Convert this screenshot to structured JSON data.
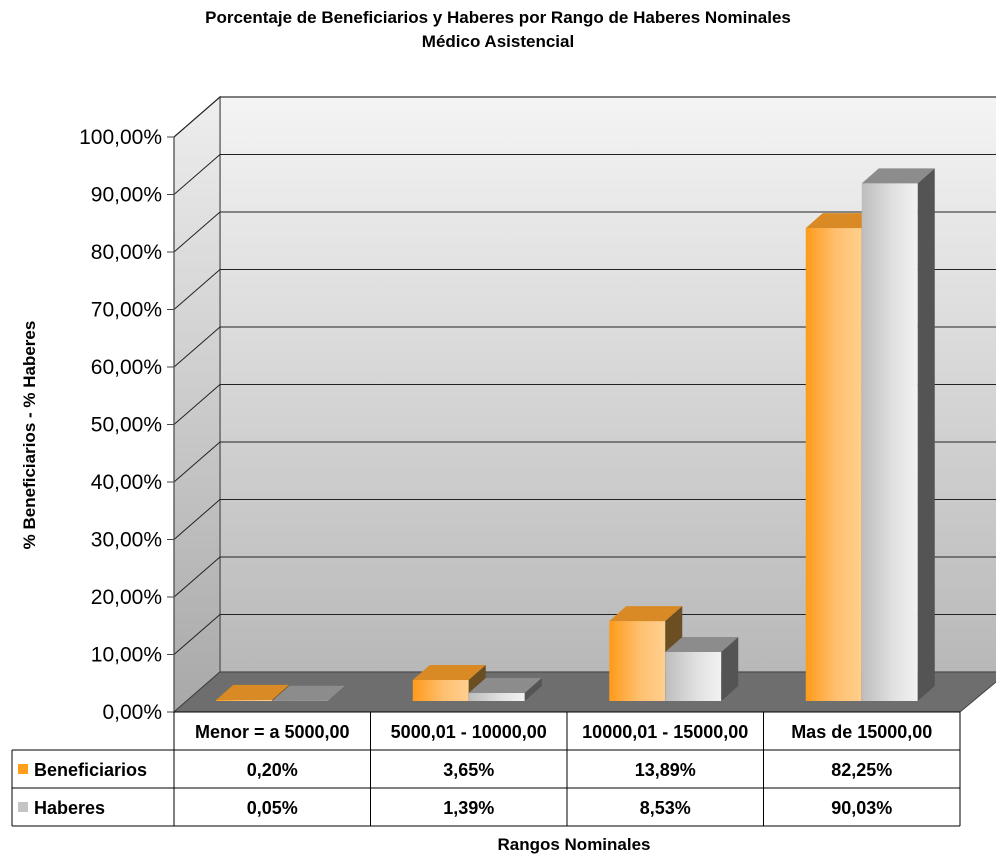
{
  "chart_data": {
    "type": "bar",
    "title": "Porcentaje de Beneficiarios y Haberes por Rango de Haberes Nominales",
    "subtitle": "Médico Asistencial",
    "xlabel": "Rangos Nominales",
    "ylabel": "% Beneficiarios - % Haberes",
    "categories": [
      "Menor = a 5000,00",
      "5000,01 - 10000,00",
      "10000,01 - 15000,00",
      "Mas de 15000,00"
    ],
    "series": [
      {
        "name": "Beneficiarios",
        "values": [
          0.2,
          3.65,
          13.89,
          82.25
        ],
        "labels": [
          "0,20%",
          "3,65%",
          "13,89%",
          "82,25%"
        ],
        "color": "#ff9f1c"
      },
      {
        "name": "Haberes",
        "values": [
          0.05,
          1.39,
          8.53,
          90.03
        ],
        "labels": [
          "0,05%",
          "1,39%",
          "8,53%",
          "90,03%"
        ],
        "color": "#c4c4c4"
      }
    ],
    "ylim": [
      0,
      100
    ],
    "yticks": [
      "0,00%",
      "10,00%",
      "20,00%",
      "30,00%",
      "40,00%",
      "50,00%",
      "60,00%",
      "70,00%",
      "80,00%",
      "90,00%",
      "100,00%"
    ],
    "grid": true,
    "legend": "data-table",
    "data_table": true
  }
}
